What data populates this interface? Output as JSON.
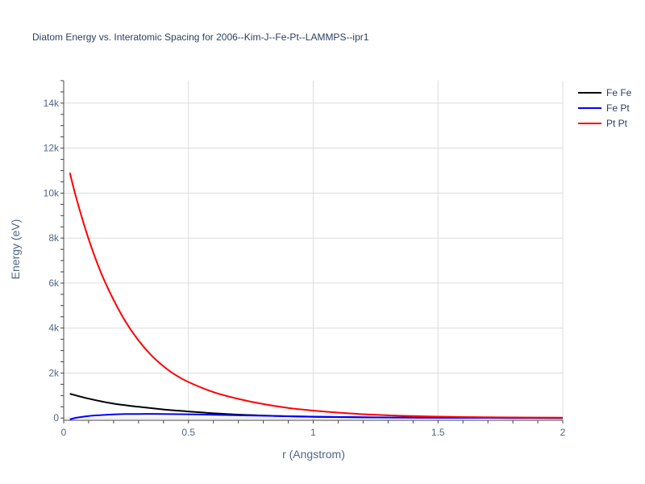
{
  "chart_data": {
    "type": "line",
    "title": "Diatom Energy vs. Interatomic Spacing for 2006--Kim-J--Fe-Pt--LAMMPS--ipr1",
    "xlabel": "r (Angstrom)",
    "ylabel": "Energy (eV)",
    "xlim": [
      0,
      2
    ],
    "ylim": [
      -100,
      15000
    ],
    "x_ticks": [
      0,
      0.5,
      1,
      1.5,
      2
    ],
    "x_tick_labels": [
      "0",
      "0.5",
      "1",
      "1.5",
      "2"
    ],
    "y_ticks": [
      0,
      2000,
      4000,
      6000,
      8000,
      10000,
      12000,
      14000
    ],
    "y_tick_labels": [
      "0",
      "2k",
      "4k",
      "6k",
      "8k",
      "10k",
      "12k",
      "14k"
    ],
    "grid": true,
    "legend_position": "top-right",
    "series": [
      {
        "name": "Fe Fe",
        "color": "#000000",
        "x": [
          0.025,
          0.1,
          0.2,
          0.3,
          0.4,
          0.5,
          0.6,
          0.7,
          0.8,
          0.9,
          1.0,
          1.2,
          1.4,
          1.6,
          1.8,
          2.0
        ],
        "y": [
          1080,
          860,
          640,
          500,
          380,
          290,
          210,
          150,
          110,
          80,
          55,
          30,
          15,
          8,
          4,
          2
        ]
      },
      {
        "name": "Fe Pt",
        "color": "#0000ff",
        "x": [
          0.025,
          0.05,
          0.1,
          0.15,
          0.2,
          0.25,
          0.3,
          0.4,
          0.5,
          0.6,
          0.7,
          0.8,
          0.9,
          1.0,
          1.2,
          1.4,
          1.6,
          1.8,
          2.0
        ],
        "y": [
          -60,
          10,
          90,
          130,
          160,
          175,
          180,
          180,
          165,
          145,
          120,
          100,
          80,
          60,
          35,
          18,
          9,
          4,
          2
        ]
      },
      {
        "name": "Pt Pt",
        "color": "#ff0000",
        "x": [
          0.025,
          0.05,
          0.1,
          0.15,
          0.2,
          0.25,
          0.3,
          0.35,
          0.4,
          0.45,
          0.5,
          0.6,
          0.7,
          0.8,
          0.9,
          1.0,
          1.1,
          1.2,
          1.3,
          1.4,
          1.5,
          1.6,
          1.8,
          2.0
        ],
        "y": [
          10900,
          9800,
          7950,
          6450,
          5250,
          4250,
          3450,
          2800,
          2300,
          1900,
          1600,
          1150,
          850,
          620,
          450,
          330,
          240,
          170,
          120,
          85,
          60,
          45,
          25,
          15
        ]
      }
    ]
  }
}
